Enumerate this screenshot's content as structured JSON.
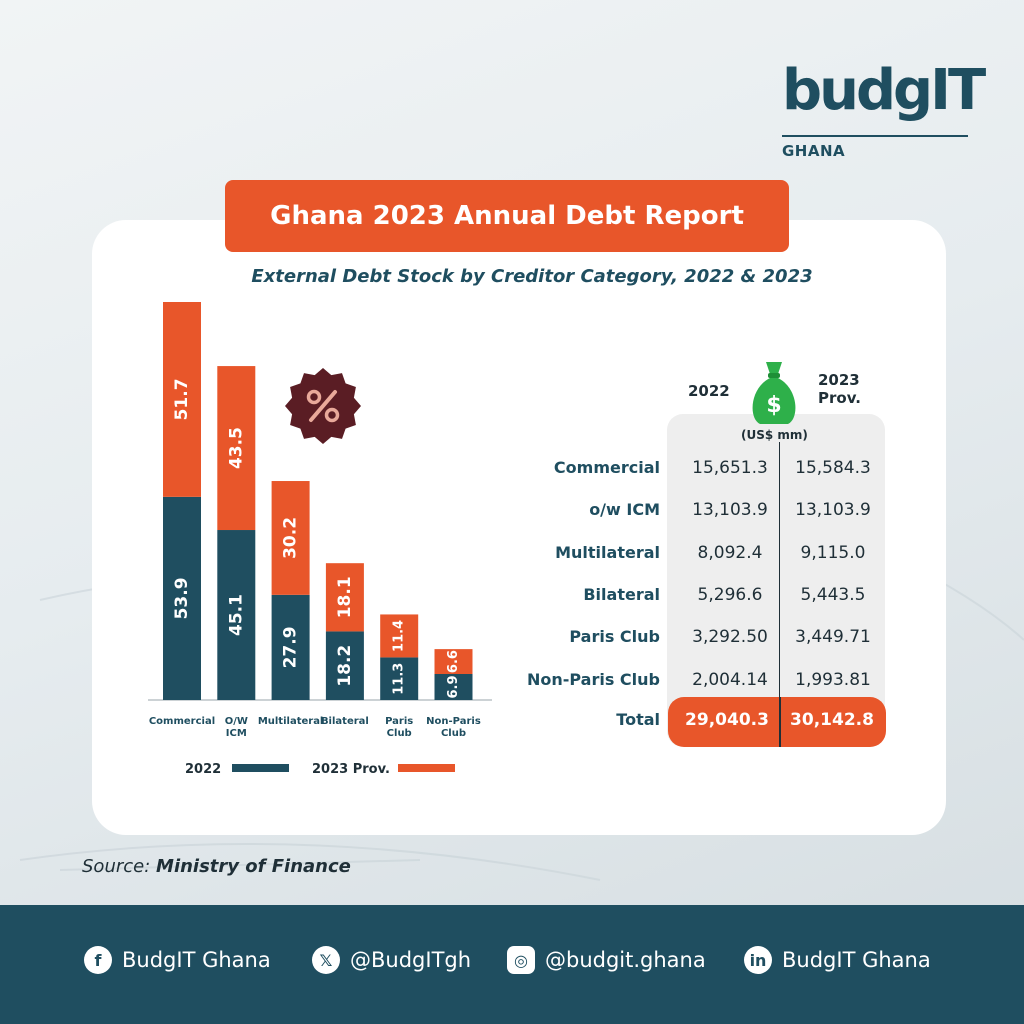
{
  "logo": {
    "word": "budgIT",
    "sub": "GHANA"
  },
  "title": "Ghana 2023 Annual Debt Report",
  "chart_data": {
    "type": "bar",
    "stacked": true,
    "title": "External Debt Stock by Creditor Category, 2022 & 2023",
    "categories": [
      "Commercial",
      "O/W ICM",
      "Multilateral",
      "Bilateral",
      "Paris Club",
      "Non-Paris Club"
    ],
    "category_lines": [
      [
        "Commercial"
      ],
      [
        "O/W",
        "ICM"
      ],
      [
        "Multilateral"
      ],
      [
        "Bilateral"
      ],
      [
        "Paris",
        "Club"
      ],
      [
        "Non-Paris",
        "Club"
      ]
    ],
    "series": [
      {
        "name": "2022",
        "color": "#1f4e60",
        "values": [
          53.9,
          45.1,
          27.9,
          18.2,
          11.3,
          6.9
        ]
      },
      {
        "name": "2023 Prov.",
        "color": "#e8562a",
        "values": [
          51.7,
          43.5,
          30.2,
          18.1,
          11.4,
          6.6
        ]
      }
    ],
    "legend_position": "bottom",
    "grid": false
  },
  "table": {
    "col_2022": "2022",
    "col_2023_line1": "2023",
    "col_2023_line2": "Prov.",
    "unit": "(US$ mm)",
    "rows": [
      {
        "label": "Commercial",
        "v2022": "15,651.3",
        "v2023": "15,584.3"
      },
      {
        "label": "o/w ICM",
        "v2022": "13,103.9",
        "v2023": "13,103.9"
      },
      {
        "label": "Multilateral",
        "v2022": "8,092.4",
        "v2023": "9,115.0"
      },
      {
        "label": "Bilateral",
        "v2022": "5,296.6",
        "v2023": "5,443.5"
      },
      {
        "label": "Paris Club",
        "v2022": "3,292.50",
        "v2023": "3,449.71"
      },
      {
        "label": "Non-Paris Club",
        "v2022": "2,004.14",
        "v2023": "1,993.81"
      }
    ],
    "total": {
      "label": "Total",
      "v2022": "29,040.3",
      "v2023": "30,142.8"
    }
  },
  "source": {
    "prefix": "Source:",
    "name": "Ministry of Finance"
  },
  "footer": {
    "facebook": "BudgIT Ghana",
    "x": "@BudgITgh",
    "instagram": "@budgit.ghana",
    "linkedin": "BudgIT Ghana"
  },
  "colors": {
    "teal": "#1f4e60",
    "orange": "#e8562a"
  }
}
